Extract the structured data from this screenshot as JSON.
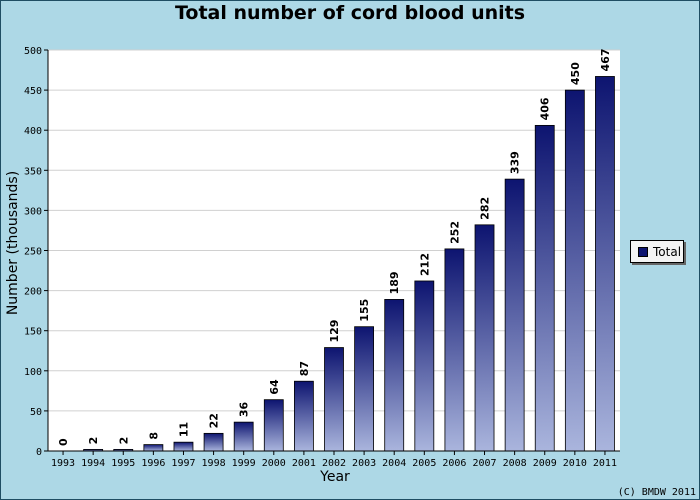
{
  "chart_data": {
    "type": "bar",
    "title": "Total number of cord blood units",
    "xlabel": "Year",
    "ylabel": "Number (thousands)",
    "ylim": [
      0,
      500
    ],
    "yticks": [
      0,
      50,
      100,
      150,
      200,
      250,
      300,
      350,
      400,
      450,
      500
    ],
    "grid": true,
    "legend_position": "right",
    "categories": [
      "1993",
      "1994",
      "1995",
      "1996",
      "1997",
      "1998",
      "1999",
      "2000",
      "2001",
      "2002",
      "2003",
      "2004",
      "2005",
      "2006",
      "2007",
      "2008",
      "2009",
      "2010",
      "2011"
    ],
    "series": [
      {
        "name": "Total",
        "values": [
          0,
          2,
          2,
          8,
          11,
          22,
          36,
          64,
          87,
          129,
          155,
          189,
          212,
          252,
          282,
          339,
          406,
          450,
          467
        ]
      }
    ],
    "colors": {
      "bar_top": "#0d1470",
      "bar_bottom": "#aab5dd",
      "background": "#add8e6",
      "plot": "#ffffff"
    }
  },
  "credit": "(C) BMDW 2011"
}
